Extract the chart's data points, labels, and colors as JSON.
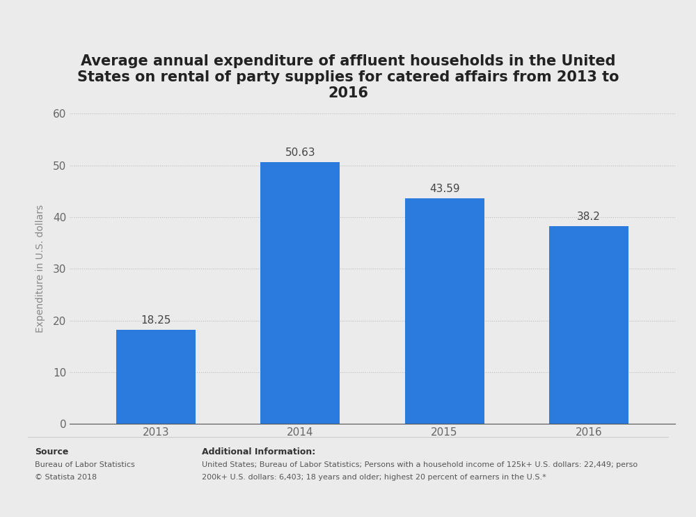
{
  "title": "Average annual expenditure of affluent households in the United\nStates on rental of party supplies for catered affairs from 2013 to\n2016",
  "categories": [
    "2013",
    "2014",
    "2015",
    "2016"
  ],
  "values": [
    18.25,
    50.63,
    43.59,
    38.2
  ],
  "bar_color": "#2b7bde",
  "ylabel": "Expenditure in U.S. dollars",
  "ylim": [
    0,
    60
  ],
  "yticks": [
    0,
    10,
    20,
    30,
    40,
    50,
    60
  ],
  "background_color": "#ebebeb",
  "plot_bg_color": "#ebebeb",
  "title_fontsize": 15,
  "label_fontsize": 10,
  "tick_fontsize": 11,
  "annotation_fontsize": 11,
  "source_label": "Source",
  "source_text1": "Bureau of Labor Statistics",
  "source_text2": "© Statista 2018",
  "additional_label": "Additional Information:",
  "additional_text1": "United States; Bureau of Labor Statistics; Persons with a household income of 125k+ U.S. dollars: 22,449; perso",
  "additional_text2": "200k+ U.S. dollars: 6,403; 18 years and older; highest 20 percent of earners in the U.S.*"
}
